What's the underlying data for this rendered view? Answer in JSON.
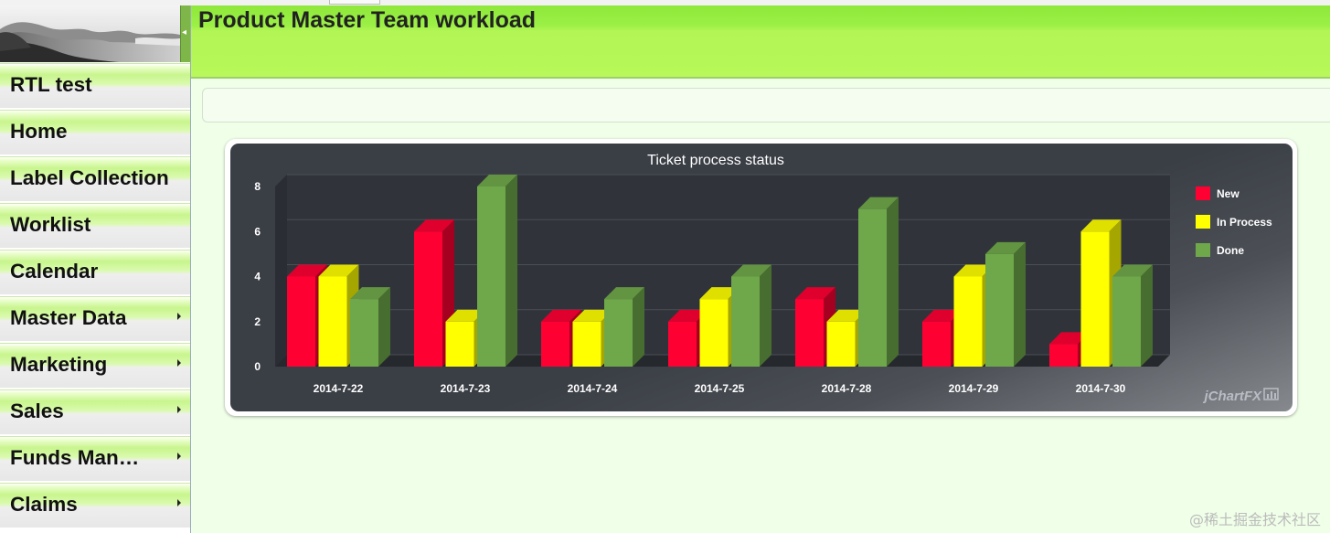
{
  "page": {
    "title": "Product Master Team workload",
    "watermark": "@稀土掘金技术社区"
  },
  "sidebar": {
    "collapse_icon": "left-arrow-icon",
    "items": [
      {
        "label": "RTL test",
        "submenu": false
      },
      {
        "label": "Home",
        "submenu": false
      },
      {
        "label": "Label Collection",
        "submenu": false
      },
      {
        "label": "Worklist",
        "submenu": false
      },
      {
        "label": "Calendar",
        "submenu": false
      },
      {
        "label": "Master Data",
        "submenu": true
      },
      {
        "label": "Marketing",
        "submenu": true
      },
      {
        "label": "Sales",
        "submenu": true
      },
      {
        "label": "Funds Man…",
        "submenu": true
      },
      {
        "label": "Claims",
        "submenu": true
      }
    ]
  },
  "colors": {
    "new": "#ff0033",
    "in_process": "#ffff00",
    "done": "#6fa84a",
    "header": "#b8f85a",
    "main_bg": "#f0ffe8"
  },
  "chart_data": {
    "type": "bar",
    "title": "Ticket process status",
    "categories": [
      "2014-7-22",
      "2014-7-23",
      "2014-7-24",
      "2014-7-25",
      "2014-7-28",
      "2014-7-29",
      "2014-7-30"
    ],
    "series": [
      {
        "name": "New",
        "values": [
          4,
          6,
          2,
          2,
          3,
          2,
          1
        ]
      },
      {
        "name": "In Process",
        "values": [
          4,
          2,
          2,
          3,
          2,
          4,
          6
        ]
      },
      {
        "name": "Done",
        "values": [
          3,
          8,
          3,
          4,
          7,
          5,
          4
        ]
      }
    ],
    "yticks": [
      0,
      2,
      4,
      6,
      8
    ],
    "ylim": [
      0,
      8
    ],
    "legend_position": "right",
    "style": "3d",
    "brand": "jChartFX"
  }
}
